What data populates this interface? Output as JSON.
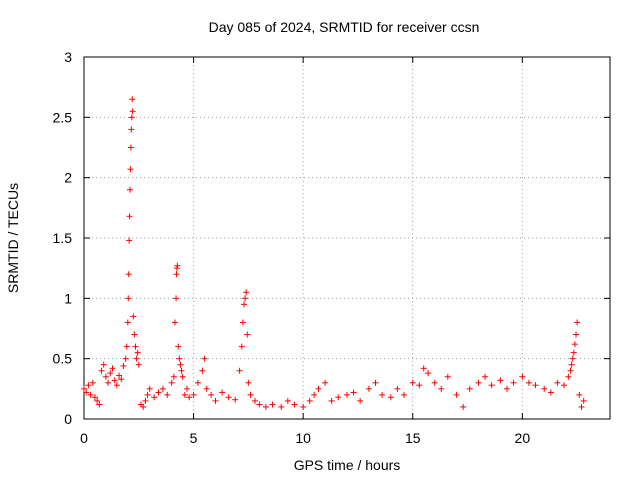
{
  "chart_data": {
    "type": "scatter",
    "title": "Day 085 of 2024, SRMTID for receiver ccsn",
    "xlabel": "GPS time / hours",
    "ylabel": "SRMTID / TECUs",
    "xlim": [
      0,
      24
    ],
    "ylim": [
      0,
      3
    ],
    "x_ticks": [
      0,
      5,
      10,
      15,
      20
    ],
    "y_ticks": [
      0,
      0.5,
      1,
      1.5,
      2,
      2.5,
      3
    ],
    "x_tick_labels": [
      "0",
      "5",
      "10",
      "15",
      "20"
    ],
    "y_tick_labels": [
      "0",
      "0.5",
      "1",
      "1.5",
      "2",
      "2.5",
      "3"
    ],
    "grid": true,
    "marker": "plus",
    "series": [
      {
        "name": "SRMTID",
        "color": "#ff0000",
        "x": [
          0.0,
          0.1,
          0.2,
          0.3,
          0.4,
          0.5,
          0.6,
          0.7,
          0.8,
          0.9,
          1.0,
          1.1,
          1.2,
          1.3,
          1.4,
          1.5,
          1.6,
          1.7,
          1.8,
          1.9,
          1.95,
          2.0,
          2.02,
          2.04,
          2.06,
          2.08,
          2.1,
          2.12,
          2.14,
          2.16,
          2.18,
          2.2,
          2.22,
          2.25,
          2.3,
          2.35,
          2.4,
          2.45,
          2.5,
          2.6,
          2.7,
          2.8,
          2.9,
          3.0,
          3.2,
          3.4,
          3.6,
          3.8,
          4.0,
          4.1,
          4.15,
          4.2,
          4.22,
          4.24,
          4.26,
          4.3,
          4.35,
          4.4,
          4.45,
          4.5,
          4.6,
          4.7,
          4.8,
          5.0,
          5.2,
          5.4,
          5.5,
          5.6,
          5.8,
          6.0,
          6.3,
          6.6,
          6.9,
          7.1,
          7.2,
          7.25,
          7.3,
          7.35,
          7.4,
          7.45,
          7.5,
          7.6,
          7.8,
          8.0,
          8.3,
          8.6,
          9.0,
          9.3,
          9.6,
          10.0,
          10.3,
          10.5,
          10.7,
          11.0,
          11.3,
          11.6,
          12.0,
          12.3,
          12.6,
          13.0,
          13.3,
          13.6,
          14.0,
          14.3,
          14.6,
          15.0,
          15.3,
          15.5,
          15.7,
          16.0,
          16.3,
          16.6,
          17.0,
          17.3,
          17.6,
          18.0,
          18.3,
          18.6,
          19.0,
          19.3,
          19.6,
          20.0,
          20.3,
          20.6,
          21.0,
          21.3,
          21.6,
          21.9,
          22.1,
          22.2,
          22.25,
          22.3,
          22.35,
          22.4,
          22.45,
          22.5,
          22.6,
          22.7,
          22.8
        ],
        "y": [
          0.25,
          0.22,
          0.28,
          0.2,
          0.3,
          0.18,
          0.15,
          0.12,
          0.4,
          0.45,
          0.35,
          0.3,
          0.38,
          0.42,
          0.32,
          0.28,
          0.36,
          0.33,
          0.44,
          0.5,
          0.6,
          0.8,
          1.0,
          1.2,
          1.48,
          1.68,
          1.9,
          2.07,
          2.25,
          2.4,
          2.5,
          2.65,
          2.55,
          0.85,
          0.7,
          0.6,
          0.5,
          0.55,
          0.45,
          0.12,
          0.1,
          0.15,
          0.2,
          0.25,
          0.18,
          0.22,
          0.25,
          0.2,
          0.3,
          0.35,
          0.8,
          1.0,
          1.2,
          1.25,
          1.27,
          0.6,
          0.5,
          0.45,
          0.4,
          0.35,
          0.2,
          0.25,
          0.18,
          0.2,
          0.3,
          0.4,
          0.5,
          0.25,
          0.2,
          0.15,
          0.22,
          0.18,
          0.16,
          0.4,
          0.6,
          0.8,
          0.95,
          1.0,
          1.05,
          0.7,
          0.3,
          0.2,
          0.15,
          0.12,
          0.1,
          0.12,
          0.1,
          0.15,
          0.12,
          0.1,
          0.15,
          0.2,
          0.25,
          0.3,
          0.15,
          0.18,
          0.2,
          0.22,
          0.15,
          0.25,
          0.3,
          0.2,
          0.18,
          0.25,
          0.2,
          0.3,
          0.28,
          0.42,
          0.38,
          0.3,
          0.25,
          0.35,
          0.2,
          0.1,
          0.25,
          0.3,
          0.35,
          0.28,
          0.32,
          0.25,
          0.3,
          0.35,
          0.3,
          0.28,
          0.25,
          0.22,
          0.3,
          0.28,
          0.35,
          0.4,
          0.45,
          0.5,
          0.55,
          0.62,
          0.7,
          0.8,
          0.2,
          0.1,
          0.15
        ]
      }
    ]
  }
}
